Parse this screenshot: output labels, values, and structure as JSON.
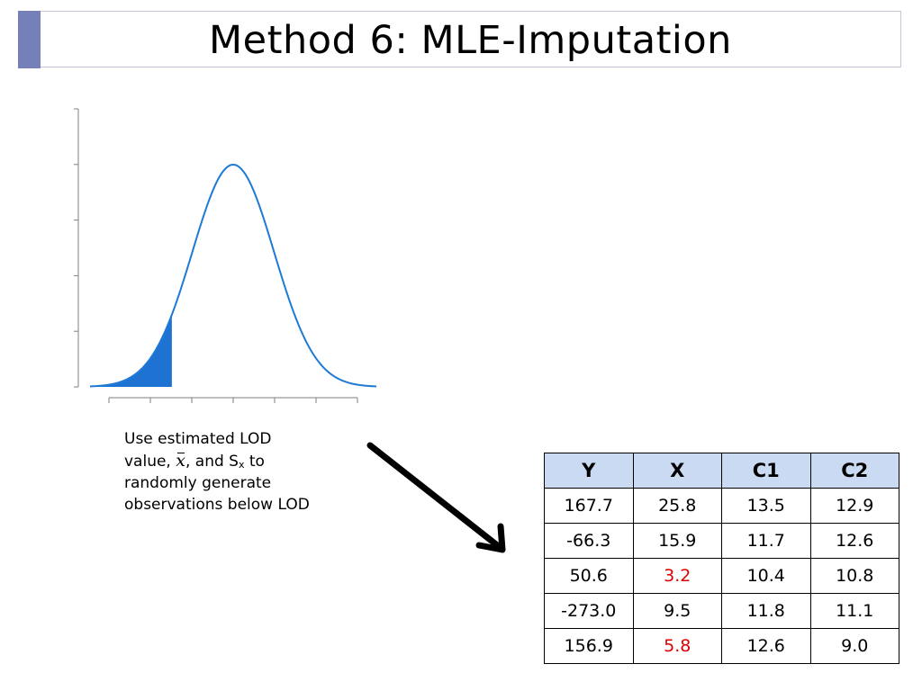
{
  "title": "Method 6: MLE-Imputation",
  "colors": {
    "accent_bar": "#7580b8",
    "curve": "#1f7ad6",
    "shade": "#1e73d2",
    "table_header": "#cadaf2",
    "imputed_value": "#e00000"
  },
  "caption": {
    "line1": "Use estimated LOD",
    "value_prefix": "value, ",
    "xbar": "x",
    "and_s": ", and S",
    "sub_x": "x",
    "to": " to",
    "line3": "randomly generate",
    "line4": "observations below LOD"
  },
  "chart_data": {
    "type": "area",
    "description_curve": "normal density with lower tail shaded below LOD",
    "mean": 0,
    "sd": 1,
    "x_range": [
      -3.5,
      3.5
    ],
    "shaded_below": -1.5,
    "y_ticks": 5,
    "x_ticks": 7,
    "title": "",
    "xlabel": "",
    "ylabel": ""
  },
  "table": {
    "headers": [
      "Y",
      "X",
      "C1",
      "C2"
    ],
    "rows": [
      [
        {
          "v": "167.7"
        },
        {
          "v": "25.8"
        },
        {
          "v": "13.5"
        },
        {
          "v": "12.9"
        }
      ],
      [
        {
          "v": "-66.3"
        },
        {
          "v": "15.9"
        },
        {
          "v": "11.7"
        },
        {
          "v": "12.6"
        }
      ],
      [
        {
          "v": "50.6"
        },
        {
          "v": "3.2",
          "imputed": true
        },
        {
          "v": "10.4"
        },
        {
          "v": "10.8"
        }
      ],
      [
        {
          "v": "-273.0"
        },
        {
          "v": "9.5"
        },
        {
          "v": "11.8"
        },
        {
          "v": "11.1"
        }
      ],
      [
        {
          "v": "156.9"
        },
        {
          "v": "5.8",
          "imputed": true
        },
        {
          "v": "12.6"
        },
        {
          "v": "9.0"
        }
      ]
    ]
  }
}
